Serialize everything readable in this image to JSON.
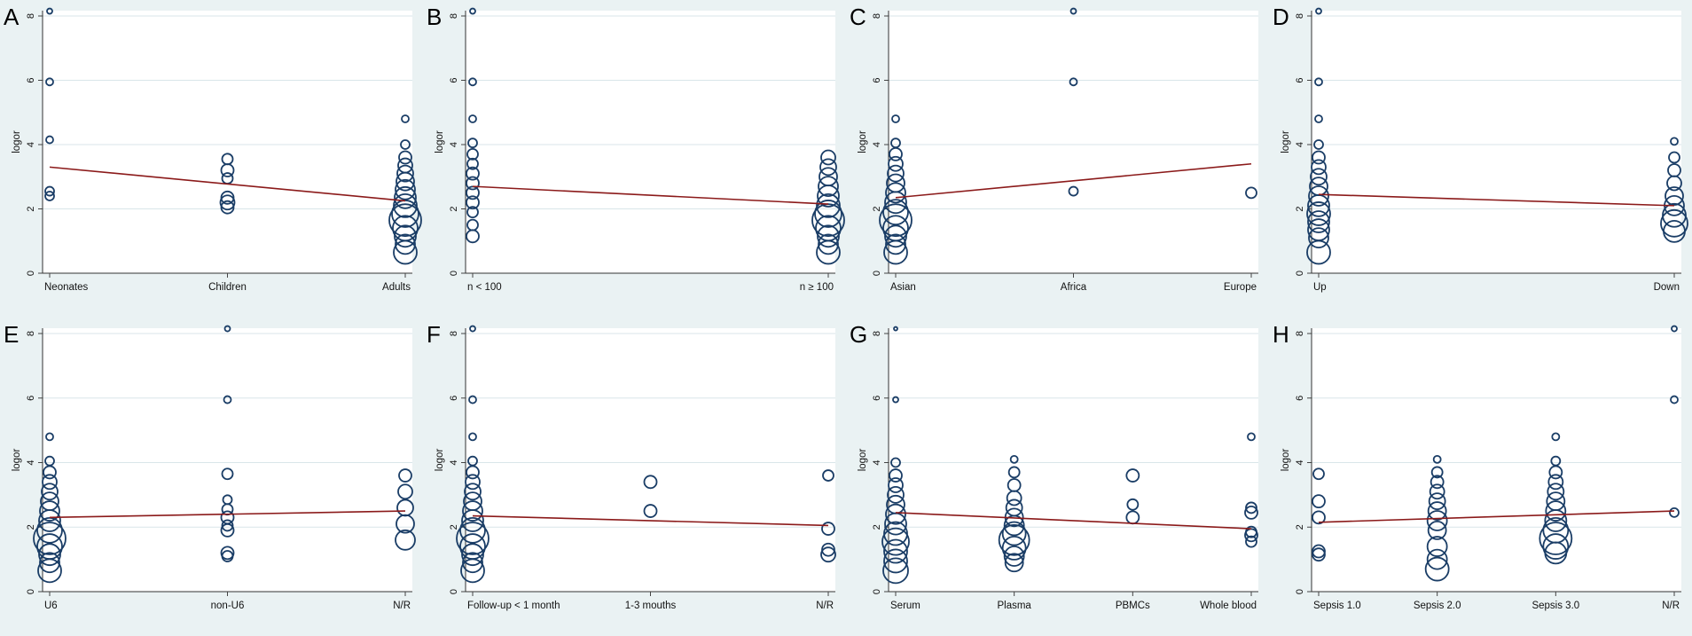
{
  "figure": {
    "background_color": "#eaf2f3",
    "plot_color": "#ffffff",
    "grid_color": "#d9e6e9",
    "marker_color": "#1a3d66",
    "line_color": "#8b1a1a"
  },
  "chart_data": [
    {
      "panel": "A",
      "type": "scatter",
      "ylabel": "logor",
      "ylim": [
        0,
        8
      ],
      "yticks": [
        0,
        2,
        4,
        6,
        8
      ],
      "xlim": [
        1,
        3
      ],
      "categories": [
        "Neonates",
        "Children",
        "Adults"
      ],
      "fit_line": [
        3.3,
        2.25
      ],
      "points": [
        {
          "x": 1,
          "y": 8.15,
          "s": 3
        },
        {
          "x": 1,
          "y": 5.95,
          "s": 4
        },
        {
          "x": 1,
          "y": 4.15,
          "s": 4
        },
        {
          "x": 1,
          "y": 2.55,
          "s": 5
        },
        {
          "x": 1,
          "y": 2.4,
          "s": 5
        },
        {
          "x": 2,
          "y": 3.55,
          "s": 6
        },
        {
          "x": 2,
          "y": 3.2,
          "s": 7
        },
        {
          "x": 2,
          "y": 2.95,
          "s": 6
        },
        {
          "x": 2,
          "y": 2.35,
          "s": 7
        },
        {
          "x": 2,
          "y": 2.2,
          "s": 8
        },
        {
          "x": 2,
          "y": 2.05,
          "s": 7
        },
        {
          "x": 3,
          "y": 4.8,
          "s": 4
        },
        {
          "x": 3,
          "y": 4.0,
          "s": 5
        },
        {
          "x": 3,
          "y": 3.6,
          "s": 7
        },
        {
          "x": 3,
          "y": 3.35,
          "s": 8
        },
        {
          "x": 3,
          "y": 3.1,
          "s": 9
        },
        {
          "x": 3,
          "y": 2.85,
          "s": 10
        },
        {
          "x": 3,
          "y": 2.6,
          "s": 11
        },
        {
          "x": 3,
          "y": 2.35,
          "s": 12
        },
        {
          "x": 3,
          "y": 2.1,
          "s": 13
        },
        {
          "x": 3,
          "y": 1.85,
          "s": 15
        },
        {
          "x": 3,
          "y": 1.65,
          "s": 18
        },
        {
          "x": 3,
          "y": 1.4,
          "s": 14
        },
        {
          "x": 3,
          "y": 1.15,
          "s": 12
        },
        {
          "x": 3,
          "y": 0.9,
          "s": 11
        },
        {
          "x": 3,
          "y": 0.65,
          "s": 13
        }
      ]
    },
    {
      "panel": "B",
      "type": "scatter",
      "ylabel": "logor",
      "ylim": [
        0,
        8
      ],
      "yticks": [
        0,
        2,
        4,
        6,
        8
      ],
      "xlim": [
        1,
        2
      ],
      "categories": [
        "n < 100",
        "n ≥ 100"
      ],
      "fit_line": [
        2.7,
        2.15
      ],
      "points": [
        {
          "x": 1,
          "y": 8.15,
          "s": 3
        },
        {
          "x": 1,
          "y": 5.95,
          "s": 4
        },
        {
          "x": 1,
          "y": 4.8,
          "s": 4
        },
        {
          "x": 1,
          "y": 4.05,
          "s": 5
        },
        {
          "x": 1,
          "y": 3.7,
          "s": 6
        },
        {
          "x": 1,
          "y": 3.4,
          "s": 6
        },
        {
          "x": 1,
          "y": 3.1,
          "s": 7
        },
        {
          "x": 1,
          "y": 2.8,
          "s": 7
        },
        {
          "x": 1,
          "y": 2.5,
          "s": 7
        },
        {
          "x": 1,
          "y": 2.2,
          "s": 7
        },
        {
          "x": 1,
          "y": 1.9,
          "s": 6
        },
        {
          "x": 1,
          "y": 1.5,
          "s": 6
        },
        {
          "x": 1,
          "y": 1.15,
          "s": 7
        },
        {
          "x": 2,
          "y": 3.6,
          "s": 8
        },
        {
          "x": 2,
          "y": 3.3,
          "s": 9
        },
        {
          "x": 2,
          "y": 3.0,
          "s": 10
        },
        {
          "x": 2,
          "y": 2.7,
          "s": 11
        },
        {
          "x": 2,
          "y": 2.4,
          "s": 12
        },
        {
          "x": 2,
          "y": 2.1,
          "s": 13
        },
        {
          "x": 2,
          "y": 1.85,
          "s": 15
        },
        {
          "x": 2,
          "y": 1.65,
          "s": 18
        },
        {
          "x": 2,
          "y": 1.4,
          "s": 14
        },
        {
          "x": 2,
          "y": 1.15,
          "s": 12
        },
        {
          "x": 2,
          "y": 0.9,
          "s": 11
        },
        {
          "x": 2,
          "y": 0.65,
          "s": 13
        }
      ]
    },
    {
      "panel": "C",
      "type": "scatter",
      "ylabel": "logor",
      "ylim": [
        0,
        8
      ],
      "yticks": [
        0,
        2,
        4,
        6,
        8
      ],
      "xlim": [
        1,
        3
      ],
      "categories": [
        "Asian",
        "Africa",
        "Europe"
      ],
      "fit_line": [
        2.35,
        3.4
      ],
      "points": [
        {
          "x": 1,
          "y": 4.8,
          "s": 4
        },
        {
          "x": 1,
          "y": 4.05,
          "s": 5
        },
        {
          "x": 1,
          "y": 3.7,
          "s": 7
        },
        {
          "x": 1,
          "y": 3.4,
          "s": 8
        },
        {
          "x": 1,
          "y": 3.1,
          "s": 9
        },
        {
          "x": 1,
          "y": 2.8,
          "s": 10
        },
        {
          "x": 1,
          "y": 2.5,
          "s": 11
        },
        {
          "x": 1,
          "y": 2.2,
          "s": 12
        },
        {
          "x": 1,
          "y": 1.9,
          "s": 14
        },
        {
          "x": 1,
          "y": 1.65,
          "s": 18
        },
        {
          "x": 1,
          "y": 1.4,
          "s": 14
        },
        {
          "x": 1,
          "y": 1.15,
          "s": 12
        },
        {
          "x": 1,
          "y": 0.9,
          "s": 11
        },
        {
          "x": 1,
          "y": 0.65,
          "s": 13
        },
        {
          "x": 2,
          "y": 8.15,
          "s": 3
        },
        {
          "x": 2,
          "y": 5.95,
          "s": 4
        },
        {
          "x": 2,
          "y": 2.55,
          "s": 5
        },
        {
          "x": 3,
          "y": 2.5,
          "s": 6
        }
      ]
    },
    {
      "panel": "D",
      "type": "scatter",
      "ylabel": "logor",
      "ylim": [
        0,
        8
      ],
      "yticks": [
        0,
        2,
        4,
        6,
        8
      ],
      "xlim": [
        1,
        2
      ],
      "categories": [
        "Up",
        "Down"
      ],
      "fit_line": [
        2.45,
        2.1
      ],
      "points": [
        {
          "x": 1,
          "y": 8.15,
          "s": 3
        },
        {
          "x": 1,
          "y": 5.95,
          "s": 4
        },
        {
          "x": 1,
          "y": 4.8,
          "s": 4
        },
        {
          "x": 1,
          "y": 4.0,
          "s": 5
        },
        {
          "x": 1,
          "y": 3.6,
          "s": 7
        },
        {
          "x": 1,
          "y": 3.3,
          "s": 8
        },
        {
          "x": 1,
          "y": 3.0,
          "s": 9
        },
        {
          "x": 1,
          "y": 2.7,
          "s": 10
        },
        {
          "x": 1,
          "y": 2.4,
          "s": 11
        },
        {
          "x": 1,
          "y": 2.1,
          "s": 12
        },
        {
          "x": 1,
          "y": 1.85,
          "s": 13
        },
        {
          "x": 1,
          "y": 1.6,
          "s": 12
        },
        {
          "x": 1,
          "y": 1.35,
          "s": 12
        },
        {
          "x": 1,
          "y": 1.1,
          "s": 11
        },
        {
          "x": 1,
          "y": 0.65,
          "s": 13
        },
        {
          "x": 2,
          "y": 4.1,
          "s": 4
        },
        {
          "x": 2,
          "y": 3.6,
          "s": 6
        },
        {
          "x": 2,
          "y": 3.2,
          "s": 7
        },
        {
          "x": 2,
          "y": 2.8,
          "s": 8
        },
        {
          "x": 2,
          "y": 2.4,
          "s": 10
        },
        {
          "x": 2,
          "y": 2.1,
          "s": 11
        },
        {
          "x": 2,
          "y": 1.8,
          "s": 13
        },
        {
          "x": 2,
          "y": 1.55,
          "s": 15
        },
        {
          "x": 2,
          "y": 1.3,
          "s": 12
        }
      ]
    },
    {
      "panel": "E",
      "type": "scatter",
      "ylabel": "logor",
      "ylim": [
        0,
        8
      ],
      "yticks": [
        0,
        2,
        4,
        6,
        8
      ],
      "xlim": [
        1,
        3
      ],
      "categories": [
        "U6",
        "non-U6",
        "N/R"
      ],
      "fit_line": [
        2.3,
        2.5
      ],
      "points": [
        {
          "x": 1,
          "y": 4.8,
          "s": 4
        },
        {
          "x": 1,
          "y": 4.05,
          "s": 5
        },
        {
          "x": 1,
          "y": 3.7,
          "s": 7
        },
        {
          "x": 1,
          "y": 3.4,
          "s": 8
        },
        {
          "x": 1,
          "y": 3.1,
          "s": 9
        },
        {
          "x": 1,
          "y": 2.8,
          "s": 10
        },
        {
          "x": 1,
          "y": 2.5,
          "s": 11
        },
        {
          "x": 1,
          "y": 2.2,
          "s": 12
        },
        {
          "x": 1,
          "y": 1.9,
          "s": 14
        },
        {
          "x": 1,
          "y": 1.65,
          "s": 18
        },
        {
          "x": 1,
          "y": 1.4,
          "s": 14
        },
        {
          "x": 1,
          "y": 1.15,
          "s": 12
        },
        {
          "x": 1,
          "y": 0.9,
          "s": 11
        },
        {
          "x": 1,
          "y": 0.65,
          "s": 13
        },
        {
          "x": 2,
          "y": 8.15,
          "s": 3
        },
        {
          "x": 2,
          "y": 5.95,
          "s": 4
        },
        {
          "x": 2,
          "y": 3.65,
          "s": 6
        },
        {
          "x": 2,
          "y": 2.85,
          "s": 5
        },
        {
          "x": 2,
          "y": 2.55,
          "s": 6
        },
        {
          "x": 2,
          "y": 2.3,
          "s": 7
        },
        {
          "x": 2,
          "y": 2.05,
          "s": 6
        },
        {
          "x": 2,
          "y": 1.9,
          "s": 7
        },
        {
          "x": 2,
          "y": 1.2,
          "s": 7
        },
        {
          "x": 2,
          "y": 1.1,
          "s": 6
        },
        {
          "x": 3,
          "y": 3.6,
          "s": 7
        },
        {
          "x": 3,
          "y": 3.1,
          "s": 8
        },
        {
          "x": 3,
          "y": 2.6,
          "s": 9
        },
        {
          "x": 3,
          "y": 2.1,
          "s": 10
        },
        {
          "x": 3,
          "y": 1.6,
          "s": 11
        }
      ]
    },
    {
      "panel": "F",
      "type": "scatter",
      "ylabel": "logor",
      "ylim": [
        0,
        8
      ],
      "yticks": [
        0,
        2,
        4,
        6,
        8
      ],
      "xlim": [
        1,
        3
      ],
      "categories": [
        "Follow-up < 1 month",
        "1-3 mouths",
        "N/R"
      ],
      "fit_line": [
        2.35,
        2.05
      ],
      "points": [
        {
          "x": 1,
          "y": 8.15,
          "s": 3
        },
        {
          "x": 1,
          "y": 5.95,
          "s": 4
        },
        {
          "x": 1,
          "y": 4.8,
          "s": 4
        },
        {
          "x": 1,
          "y": 4.05,
          "s": 5
        },
        {
          "x": 1,
          "y": 3.7,
          "s": 7
        },
        {
          "x": 1,
          "y": 3.4,
          "s": 8
        },
        {
          "x": 1,
          "y": 3.1,
          "s": 9
        },
        {
          "x": 1,
          "y": 2.8,
          "s": 10
        },
        {
          "x": 1,
          "y": 2.5,
          "s": 11
        },
        {
          "x": 1,
          "y": 2.2,
          "s": 12
        },
        {
          "x": 1,
          "y": 1.9,
          "s": 14
        },
        {
          "x": 1,
          "y": 1.65,
          "s": 18
        },
        {
          "x": 1,
          "y": 1.4,
          "s": 14
        },
        {
          "x": 1,
          "y": 1.15,
          "s": 12
        },
        {
          "x": 1,
          "y": 0.9,
          "s": 11
        },
        {
          "x": 1,
          "y": 0.65,
          "s": 13
        },
        {
          "x": 2,
          "y": 3.4,
          "s": 7
        },
        {
          "x": 2,
          "y": 2.5,
          "s": 7
        },
        {
          "x": 3,
          "y": 3.6,
          "s": 6
        },
        {
          "x": 3,
          "y": 1.95,
          "s": 7
        },
        {
          "x": 3,
          "y": 1.3,
          "s": 7
        },
        {
          "x": 3,
          "y": 1.15,
          "s": 8
        }
      ]
    },
    {
      "panel": "G",
      "type": "scatter",
      "ylabel": "logor",
      "ylim": [
        0,
        8
      ],
      "yticks": [
        0,
        2,
        4,
        6,
        8
      ],
      "xlim": [
        1,
        4
      ],
      "categories": [
        "Serum",
        "Plasma",
        "PBMCs",
        "Whole blood"
      ],
      "fit_line": [
        2.45,
        1.95
      ],
      "points": [
        {
          "x": 1,
          "y": 8.15,
          "s": 2
        },
        {
          "x": 1,
          "y": 5.95,
          "s": 3
        },
        {
          "x": 1,
          "y": 4.0,
          "s": 5
        },
        {
          "x": 1,
          "y": 3.6,
          "s": 7
        },
        {
          "x": 1,
          "y": 3.3,
          "s": 8
        },
        {
          "x": 1,
          "y": 3.0,
          "s": 9
        },
        {
          "x": 1,
          "y": 2.7,
          "s": 10
        },
        {
          "x": 1,
          "y": 2.4,
          "s": 11
        },
        {
          "x": 1,
          "y": 2.1,
          "s": 12
        },
        {
          "x": 1,
          "y": 1.8,
          "s": 13
        },
        {
          "x": 1,
          "y": 1.55,
          "s": 15
        },
        {
          "x": 1,
          "y": 1.25,
          "s": 13
        },
        {
          "x": 1,
          "y": 0.95,
          "s": 13
        },
        {
          "x": 1,
          "y": 0.65,
          "s": 14
        },
        {
          "x": 2,
          "y": 4.1,
          "s": 4
        },
        {
          "x": 2,
          "y": 3.7,
          "s": 6
        },
        {
          "x": 2,
          "y": 3.3,
          "s": 7
        },
        {
          "x": 2,
          "y": 2.9,
          "s": 8
        },
        {
          "x": 2,
          "y": 2.6,
          "s": 9
        },
        {
          "x": 2,
          "y": 2.3,
          "s": 10
        },
        {
          "x": 2,
          "y": 2.05,
          "s": 11
        },
        {
          "x": 2,
          "y": 1.8,
          "s": 13
        },
        {
          "x": 2,
          "y": 1.6,
          "s": 17
        },
        {
          "x": 2,
          "y": 1.35,
          "s": 13
        },
        {
          "x": 2,
          "y": 1.1,
          "s": 11
        },
        {
          "x": 2,
          "y": 0.9,
          "s": 10
        },
        {
          "x": 3,
          "y": 3.6,
          "s": 7
        },
        {
          "x": 3,
          "y": 2.7,
          "s": 6
        },
        {
          "x": 3,
          "y": 2.3,
          "s": 7
        },
        {
          "x": 4,
          "y": 4.8,
          "s": 4
        },
        {
          "x": 4,
          "y": 2.6,
          "s": 6
        },
        {
          "x": 4,
          "y": 2.45,
          "s": 7
        },
        {
          "x": 4,
          "y": 1.85,
          "s": 6
        },
        {
          "x": 4,
          "y": 1.75,
          "s": 7
        },
        {
          "x": 4,
          "y": 1.55,
          "s": 6
        }
      ]
    },
    {
      "panel": "H",
      "type": "scatter",
      "ylabel": "logor",
      "ylim": [
        0,
        8
      ],
      "yticks": [
        0,
        2,
        4,
        6,
        8
      ],
      "xlim": [
        1,
        4
      ],
      "categories": [
        "Sepsis 1.0",
        "Sepsis 2.0",
        "Sepsis 3.0",
        "N/R"
      ],
      "fit_line": [
        2.15,
        2.5
      ],
      "points": [
        {
          "x": 1,
          "y": 3.65,
          "s": 6
        },
        {
          "x": 1,
          "y": 2.8,
          "s": 7
        },
        {
          "x": 1,
          "y": 2.3,
          "s": 7
        },
        {
          "x": 1,
          "y": 1.25,
          "s": 7
        },
        {
          "x": 1,
          "y": 1.15,
          "s": 7
        },
        {
          "x": 2,
          "y": 4.1,
          "s": 4
        },
        {
          "x": 2,
          "y": 3.7,
          "s": 6
        },
        {
          "x": 2,
          "y": 3.4,
          "s": 7
        },
        {
          "x": 2,
          "y": 3.1,
          "s": 8
        },
        {
          "x": 2,
          "y": 2.8,
          "s": 9
        },
        {
          "x": 2,
          "y": 2.5,
          "s": 10
        },
        {
          "x": 2,
          "y": 2.2,
          "s": 11
        },
        {
          "x": 2,
          "y": 1.9,
          "s": 10
        },
        {
          "x": 2,
          "y": 1.4,
          "s": 11
        },
        {
          "x": 2,
          "y": 1.0,
          "s": 11
        },
        {
          "x": 2,
          "y": 0.7,
          "s": 13
        },
        {
          "x": 3,
          "y": 4.8,
          "s": 4
        },
        {
          "x": 3,
          "y": 4.05,
          "s": 5
        },
        {
          "x": 3,
          "y": 3.7,
          "s": 7
        },
        {
          "x": 3,
          "y": 3.4,
          "s": 8
        },
        {
          "x": 3,
          "y": 3.1,
          "s": 9
        },
        {
          "x": 3,
          "y": 2.8,
          "s": 10
        },
        {
          "x": 3,
          "y": 2.5,
          "s": 11
        },
        {
          "x": 3,
          "y": 2.2,
          "s": 12
        },
        {
          "x": 3,
          "y": 1.9,
          "s": 14
        },
        {
          "x": 3,
          "y": 1.65,
          "s": 18
        },
        {
          "x": 3,
          "y": 1.4,
          "s": 14
        },
        {
          "x": 3,
          "y": 1.2,
          "s": 12
        },
        {
          "x": 4,
          "y": 8.15,
          "s": 3
        },
        {
          "x": 4,
          "y": 5.95,
          "s": 4
        },
        {
          "x": 4,
          "y": 2.45,
          "s": 5
        }
      ]
    }
  ]
}
